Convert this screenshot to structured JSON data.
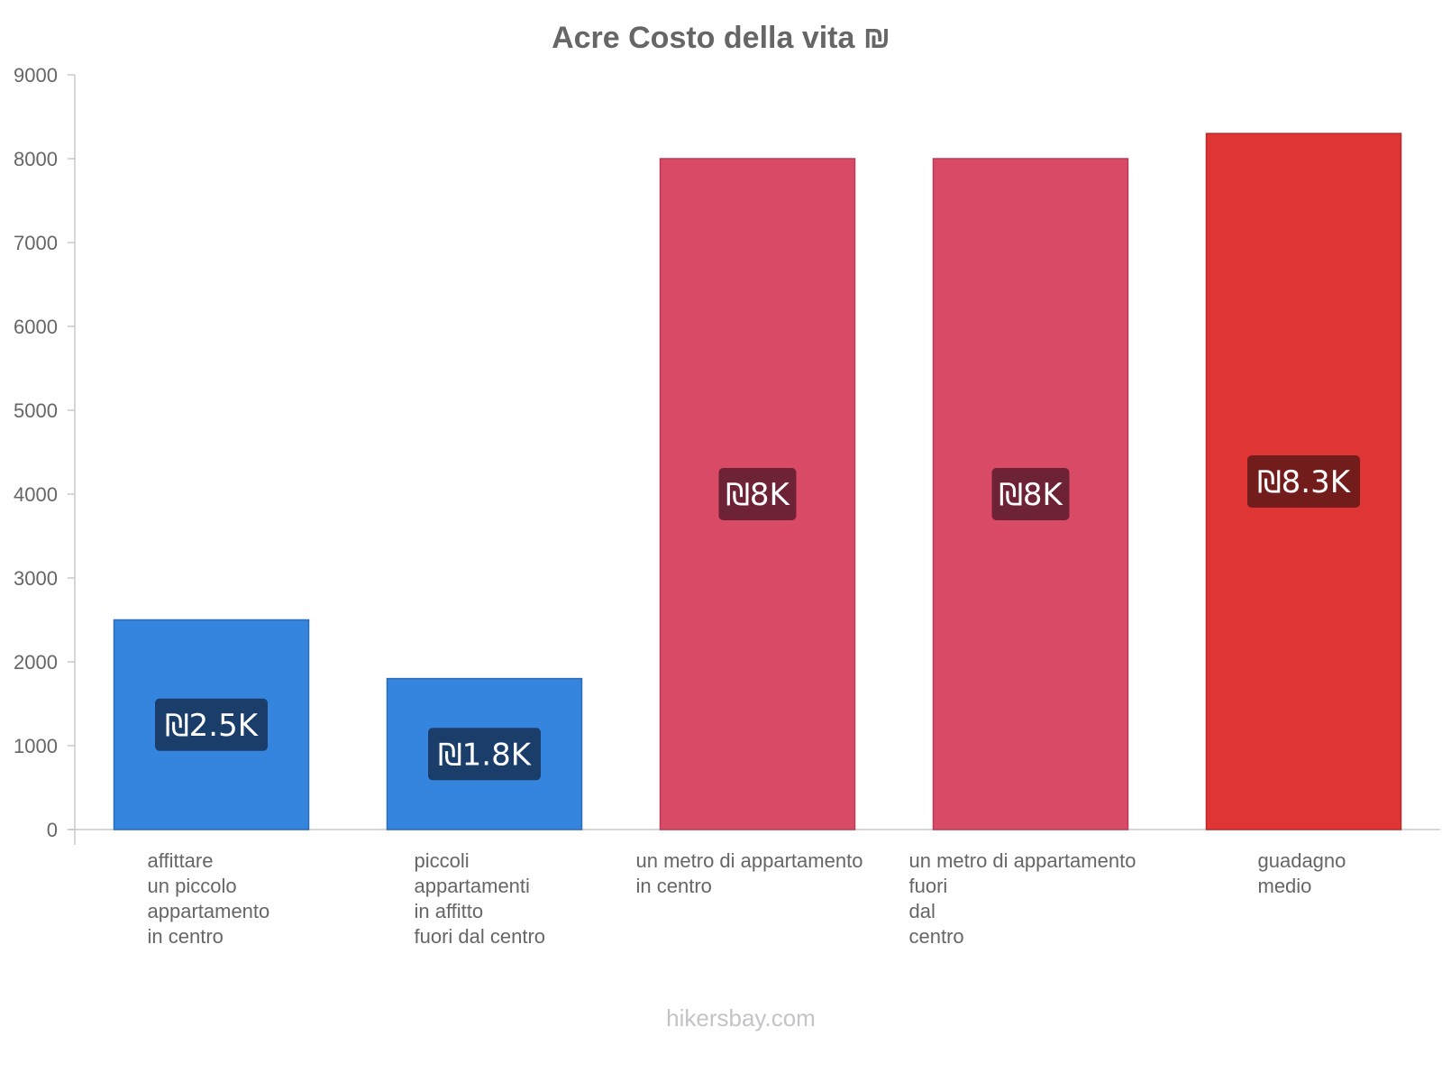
{
  "chart_data": {
    "type": "bar",
    "title": "Acre Costo della vita ₪",
    "xlabel": "",
    "ylabel": "",
    "ylim": [
      0,
      9000
    ],
    "yticks": [
      0,
      1000,
      2000,
      3000,
      4000,
      5000,
      6000,
      7000,
      8000,
      9000
    ],
    "grid": false,
    "legend": "none",
    "categories": [
      [
        "affittare",
        "un piccolo",
        "appartamento",
        "in centro"
      ],
      [
        "piccoli",
        "appartamenti",
        "in affitto",
        "fuori dal centro"
      ],
      [
        "un metro di appartamento",
        "in centro"
      ],
      [
        "un metro di appartamento",
        "fuori",
        "dal",
        "centro"
      ],
      [
        "guadagno",
        "medio"
      ]
    ],
    "values": [
      2500,
      1800,
      8000,
      8000,
      8300
    ],
    "data_labels": [
      "₪2.5K",
      "₪1.8K",
      "₪8K",
      "₪8K",
      "₪8.3K"
    ],
    "bar_colors": [
      "#3584dd",
      "#3584dd",
      "#d94a67",
      "#d94a67",
      "#e03535"
    ],
    "bar_border_colors": [
      "#2b6cb8",
      "#2b6cb8",
      "#b83c55",
      "#b83c55",
      "#b82a2a"
    ],
    "label_bg_colors": [
      "#1b3d6a",
      "#1b3d6a",
      "#6e2236",
      "#6e2236",
      "#731c1c"
    ]
  },
  "footer": {
    "source": "hikersbay.com"
  },
  "colors": {
    "axis": "#c8c8c8",
    "text": "#666666"
  }
}
